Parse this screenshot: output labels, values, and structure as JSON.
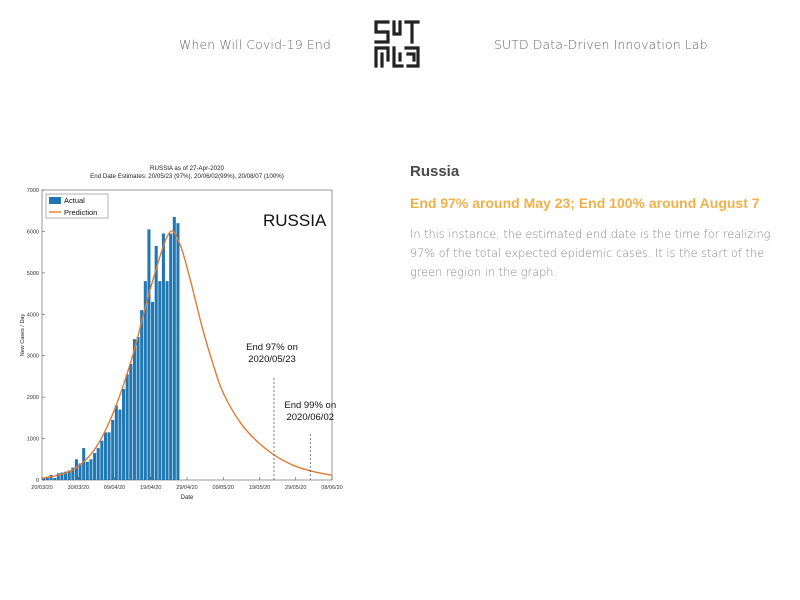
{
  "header": {
    "left_link": "When Will Covid-19 End",
    "right_link": "SUTD Data-Driven Innovation Lab",
    "logo_icon": "sutd-maze-logo-icon"
  },
  "info": {
    "country": "Russia",
    "headline": "End 97% around May 23; End 100% around August 7",
    "description": "In this instance, the estimated end date is the time for realizing 97% of the total expected epidemic cases. It is the start of the green region in the graph."
  },
  "colors": {
    "headline": "#f0b04a",
    "actual": "#1f77b4",
    "prediction": "#e07a32"
  },
  "chart_data": {
    "type": "bar",
    "title": "RUSSIA as of 27-Apr-2020",
    "subtitle": "End Date Estimates: 20/05/23 (97%), 20/06/02(99%), 20/08/07 (100%)",
    "big_label": "RUSSIA",
    "xlabel": "Date",
    "ylabel": "New Cases / Day",
    "ylim": [
      0,
      7000
    ],
    "yticks": [
      0,
      1000,
      2000,
      3000,
      4000,
      5000,
      6000,
      7000
    ],
    "xlim": [
      0,
      80
    ],
    "xticks": [
      {
        "day": 0,
        "label": "20/03/20"
      },
      {
        "day": 10,
        "label": "30/03/20"
      },
      {
        "day": 20,
        "label": "09/04/20"
      },
      {
        "day": 30,
        "label": "19/04/20"
      },
      {
        "day": 40,
        "label": "29/04/20"
      },
      {
        "day": 50,
        "label": "09/05/20"
      },
      {
        "day": 60,
        "label": "19/05/20"
      },
      {
        "day": 70,
        "label": "29/05/20"
      },
      {
        "day": 80,
        "label": "08/06/20"
      }
    ],
    "legend": {
      "position": "top-left",
      "entries": [
        "Actual",
        "Prediction"
      ]
    },
    "series": [
      {
        "name": "Actual",
        "kind": "bar",
        "start_day": 0,
        "values": [
          50,
          60,
          120,
          50,
          160,
          180,
          200,
          230,
          300,
          500,
          400,
          770,
          440,
          500,
          650,
          770,
          950,
          1150,
          1150,
          1450,
          1800,
          1700,
          2200,
          2550,
          2800,
          3400,
          3450,
          4100,
          4800,
          6050,
          4300,
          5650,
          4800,
          5950,
          4800,
          5950,
          6350,
          6200
        ]
      },
      {
        "name": "Prediction",
        "kind": "line",
        "peak_day": 35,
        "peak_value": 5950,
        "points": [
          [
            0,
            40
          ],
          [
            5,
            130
          ],
          [
            10,
            330
          ],
          [
            15,
            800
          ],
          [
            20,
            1700
          ],
          [
            25,
            3000
          ],
          [
            30,
            4650
          ],
          [
            35,
            5950
          ],
          [
            38,
            5700
          ],
          [
            41,
            4800
          ],
          [
            44,
            3750
          ],
          [
            47,
            2850
          ],
          [
            50,
            2100
          ],
          [
            55,
            1350
          ],
          [
            60,
            880
          ],
          [
            65,
            550
          ],
          [
            70,
            330
          ],
          [
            75,
            200
          ],
          [
            80,
            115
          ]
        ]
      }
    ],
    "annotations": [
      {
        "day": 64,
        "lines": [
          "End 97% on",
          "2020/05/23"
        ]
      },
      {
        "day": 74,
        "lines": [
          "End 99% on",
          "2020/06/02"
        ]
      }
    ]
  }
}
